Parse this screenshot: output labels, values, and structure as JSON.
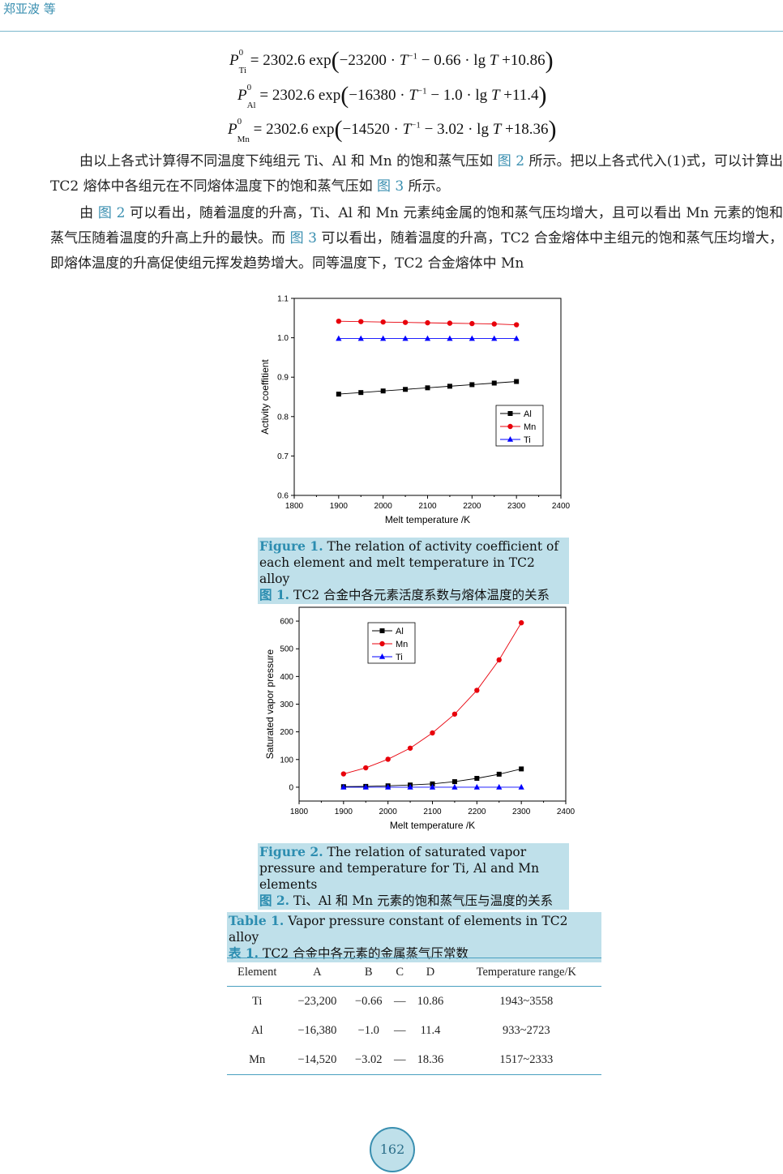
{
  "header": {
    "text": "郑亚波 等"
  },
  "equations": [
    {
      "sym": "P",
      "sup": "0",
      "sub": "Ti",
      "rhs_start": "= 2302.6 exp",
      "a": "−23200 · ",
      "t": "T",
      "exp": "−1",
      "b": " − 0.66 · lg ",
      "t2": "T",
      "c": " +10.86"
    },
    {
      "sym": "P",
      "sup": "0",
      "sub": "Al",
      "rhs_start": "= 2302.6 exp",
      "a": "−16380 · ",
      "t": "T",
      "exp": "−1",
      "b": " − 1.0 · lg ",
      "t2": "T",
      "c": " +11.4"
    },
    {
      "sym": "P",
      "sup": "0",
      "sub": "Mn",
      "rhs_start": "= 2302.6 exp",
      "a": "−14520 · ",
      "t": "T",
      "exp": "−1",
      "b": " − 3.02 · lg ",
      "t2": "T",
      "c": " +18.36"
    }
  ],
  "paragraph1": {
    "a": "由以上各式计算得不同温度下纯组元 Ti、Al 和 Mn 的饱和蒸气压如 ",
    "ref1": "图 2",
    "b": " 所示。把以上各式代入(1)式，可以计算出 TC2 熔体中各组元在不同熔体温度下的饱和蒸气压如 ",
    "ref2": "图 3",
    "c": " 所示。"
  },
  "paragraph2": {
    "a": "由 ",
    "ref1": "图 2",
    "b": " 可以看出，随着温度的升高，Ti、Al 和 Mn 元素纯金属的饱和蒸气压均增大，且可以看出 Mn 元素的饱和蒸气压随着温度的升高上升的最快。而 ",
    "ref2": "图 3",
    "c": " 可以看出，随着温度的升高，TC2 合金熔体中主组元的饱和蒸气压均增大，即熔体温度的升高促使组元挥发趋势增大。同等温度下，TC2  合金熔体中  Mn"
  },
  "figure1_caption": {
    "label": "Figure 1.",
    "en": " The relation of activity coefficient of each element and melt temperature in TC2 alloy",
    "cn_label": "图 1.",
    "cn": " TC2 合金中各元素活度系数与熔体温度的关系"
  },
  "figure2_caption": {
    "label": "Figure 2.",
    "en": " The relation of saturated vapor pressure and temperature for Ti, Al and Mn elements",
    "cn_label": "图 2.",
    "cn": " Ti、Al 和 Mn 元素的饱和蒸气压与温度的关系"
  },
  "chart_data": [
    {
      "type": "line",
      "xlabel": "Melt temperature /K",
      "ylabel": "Activity coeffitient",
      "xlim": [
        1800,
        2400
      ],
      "ylim": [
        0.6,
        1.1
      ],
      "xticks": [
        1800,
        1900,
        2000,
        2100,
        2200,
        2300,
        2400
      ],
      "yticks": [
        0.6,
        0.7,
        0.8,
        0.9,
        1.0,
        1.1
      ],
      "x": [
        1900,
        1950,
        2000,
        2050,
        2100,
        2150,
        2200,
        2250,
        2300
      ],
      "legend_position": "lower-right",
      "series": [
        {
          "name": "Al",
          "color": "#000000",
          "marker": "square",
          "values": [
            0.857,
            0.861,
            0.865,
            0.869,
            0.873,
            0.877,
            0.881,
            0.885,
            0.889
          ]
        },
        {
          "name": "Mn",
          "color": "#e8000b",
          "marker": "circle",
          "values": [
            1.042,
            1.041,
            1.04,
            1.039,
            1.038,
            1.037,
            1.036,
            1.035,
            1.033
          ]
        },
        {
          "name": "Ti",
          "color": "#0000ff",
          "marker": "triangle",
          "values": [
            0.998,
            0.998,
            0.998,
            0.998,
            0.998,
            0.998,
            0.998,
            0.998,
            0.998
          ]
        }
      ]
    },
    {
      "type": "line",
      "xlabel": "Melt temperature /K",
      "ylabel": "Saturated vapor pressure",
      "xlim": [
        1800,
        2400
      ],
      "ylim": [
        -50,
        650
      ],
      "xticks": [
        1800,
        1900,
        2000,
        2100,
        2200,
        2300,
        2400
      ],
      "yticks": [
        0,
        100,
        200,
        300,
        400,
        500,
        600
      ],
      "x": [
        1900,
        1950,
        2000,
        2050,
        2100,
        2150,
        2200,
        2250,
        2300
      ],
      "legend_position": "top-center",
      "series": [
        {
          "name": "Al",
          "color": "#000000",
          "marker": "square",
          "values": [
            2,
            3,
            5,
            8,
            12,
            20,
            32,
            47,
            66
          ]
        },
        {
          "name": "Mn",
          "color": "#e8000b",
          "marker": "circle",
          "values": [
            48,
            70,
            101,
            141,
            196,
            264,
            350,
            460,
            594
          ]
        },
        {
          "name": "Ti",
          "color": "#0000ff",
          "marker": "triangle",
          "values": [
            0,
            0,
            0,
            0,
            0,
            0,
            0,
            0,
            0
          ]
        }
      ]
    }
  ],
  "table": {
    "caption_label": "Table 1.",
    "caption_en": " Vapor pressure constant of elements in TC2 alloy",
    "caption_cn_label": "表 1.",
    "caption_cn": " TC2 合金中各元素的金属蒸气压常数",
    "headers": [
      "Element",
      "A",
      "B",
      "C",
      "D",
      "Temperature range/K"
    ],
    "rows": [
      [
        "Ti",
        "−23,200",
        "−0.66",
        "—",
        "10.86",
        "1943~3558"
      ],
      [
        "Al",
        "−16,380",
        "−1.0",
        "—",
        "11.4",
        "933~2723"
      ],
      [
        "Mn",
        "−14,520",
        "−3.02",
        "—",
        "18.36",
        "1517~2333"
      ]
    ]
  },
  "page_number": "162"
}
